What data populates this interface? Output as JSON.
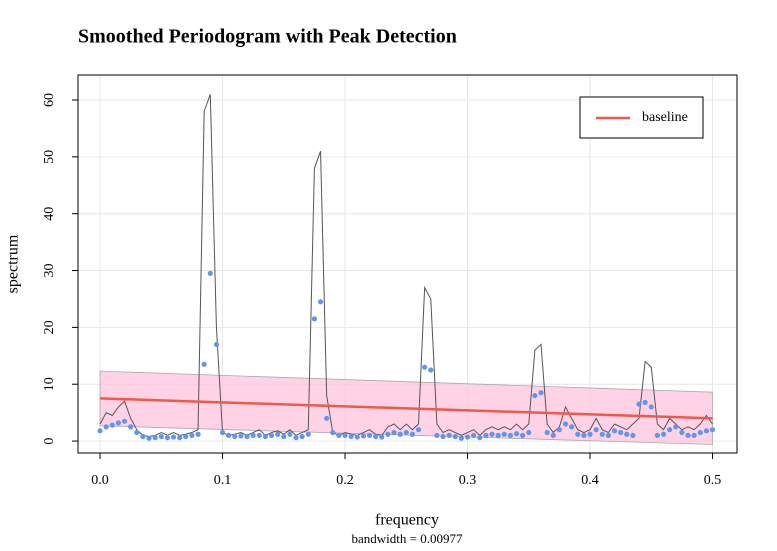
{
  "chart_data": {
    "type": "line",
    "title": "Smoothed Periodogram with Peak Detection",
    "xlabel": "frequency",
    "sublabel": "bandwidth = 0.00977",
    "ylabel": "spectrum",
    "xlim": [
      -0.018,
      0.52
    ],
    "ylim": [
      -2.1,
      64.4
    ],
    "xticks": [
      {
        "value": 0,
        "label": "0.0"
      },
      0.1,
      0.2,
      0.3,
      0.4,
      0.5
    ],
    "yticks": [
      0,
      10,
      20,
      30,
      40,
      50,
      60
    ],
    "grid": true,
    "legend": "top-right",
    "x": [
      0,
      0.005,
      0.01,
      0.015,
      0.02,
      0.025,
      0.03,
      0.035,
      0.04,
      0.045,
      0.05,
      0.055,
      0.06,
      0.065,
      0.07,
      0.075,
      0.08,
      0.085,
      0.09,
      0.095,
      0.1,
      0.105,
      0.11,
      0.115,
      0.12,
      0.125,
      0.13,
      0.135,
      0.14,
      0.145,
      0.15,
      0.155,
      0.16,
      0.165,
      0.17,
      0.175,
      0.18,
      0.185,
      0.19,
      0.195,
      0.2,
      0.205,
      0.21,
      0.215,
      0.22,
      0.225,
      0.23,
      0.235,
      0.24,
      0.245,
      0.25,
      0.255,
      0.26,
      0.265,
      0.27,
      0.275,
      0.28,
      0.285,
      0.29,
      0.295,
      0.3,
      0.305,
      0.31,
      0.315,
      0.32,
      0.325,
      0.33,
      0.335,
      0.34,
      0.345,
      0.35,
      0.355,
      0.36,
      0.365,
      0.37,
      0.375,
      0.38,
      0.385,
      0.39,
      0.395,
      0.4,
      0.405,
      0.41,
      0.415,
      0.42,
      0.425,
      0.43,
      0.435,
      0.44,
      0.445,
      0.45,
      0.455,
      0.46,
      0.465,
      0.47,
      0.475,
      0.48,
      0.485,
      0.49,
      0.495,
      0.5
    ],
    "spectrum": {
      "color": "#555555",
      "values": [
        3,
        5,
        4.5,
        6,
        7,
        4,
        2,
        1,
        0.8,
        1,
        1.5,
        1,
        1.5,
        1,
        1.2,
        1.5,
        2,
        58,
        61,
        20,
        1.5,
        1,
        1.2,
        1.5,
        1,
        1.5,
        2,
        1,
        1.5,
        1.8,
        1.2,
        2,
        1,
        1.5,
        2,
        48,
        51,
        8,
        1.5,
        1,
        1.5,
        1.2,
        1,
        1.5,
        2,
        1.2,
        1,
        2.5,
        3,
        2,
        3,
        2,
        3,
        27,
        25,
        3,
        1.5,
        2,
        1.5,
        1,
        1.5,
        2,
        1,
        2,
        2.5,
        2,
        2.5,
        2,
        3,
        2,
        3,
        16,
        17,
        3,
        1.5,
        2.5,
        6,
        4,
        2,
        1.5,
        2,
        4,
        2,
        1.5,
        3,
        2.5,
        2,
        3,
        4,
        14,
        13,
        3,
        2,
        4,
        3,
        2,
        2.5,
        2,
        3,
        4.5,
        3
      ]
    },
    "points": {
      "color": "#6495ed",
      "values": [
        1.8,
        2.5,
        2.8,
        3.2,
        3.5,
        2.5,
        1.5,
        0.8,
        0.5,
        0.6,
        0.8,
        0.6,
        0.7,
        0.6,
        0.8,
        1,
        1.2,
        13.5,
        29.5,
        17,
        1.5,
        1,
        0.8,
        0.9,
        0.8,
        1,
        1,
        0.8,
        1,
        1.2,
        0.8,
        1.2,
        0.6,
        0.8,
        1.2,
        21.5,
        24.5,
        4,
        1.5,
        1,
        1,
        0.8,
        0.7,
        0.9,
        1,
        0.8,
        0.7,
        1.2,
        1.5,
        1.2,
        1.5,
        1.2,
        2,
        13,
        12.5,
        1,
        0.8,
        1,
        0.8,
        0.5,
        0.7,
        1,
        0.6,
        1,
        1.2,
        1,
        1.2,
        1,
        1.3,
        1,
        1.5,
        8,
        8.5,
        1.5,
        1,
        2,
        3,
        2.5,
        1.2,
        1,
        1.2,
        2,
        1.2,
        1,
        1.8,
        1.5,
        1.2,
        1,
        6.5,
        6.8,
        6,
        1,
        1.2,
        2,
        2.5,
        1.5,
        1,
        1,
        1.5,
        1.8,
        2
      ]
    },
    "band": {
      "color": "#ffc4dc",
      "x": [
        0,
        0.5
      ],
      "upper": [
        12.3,
        8.6
      ],
      "lower": [
        2.7,
        -0.6
      ]
    },
    "baseline": {
      "name": "baseline",
      "color": "#f0584a",
      "x": [
        0,
        0.5
      ],
      "values": [
        7.5,
        4
      ]
    }
  }
}
